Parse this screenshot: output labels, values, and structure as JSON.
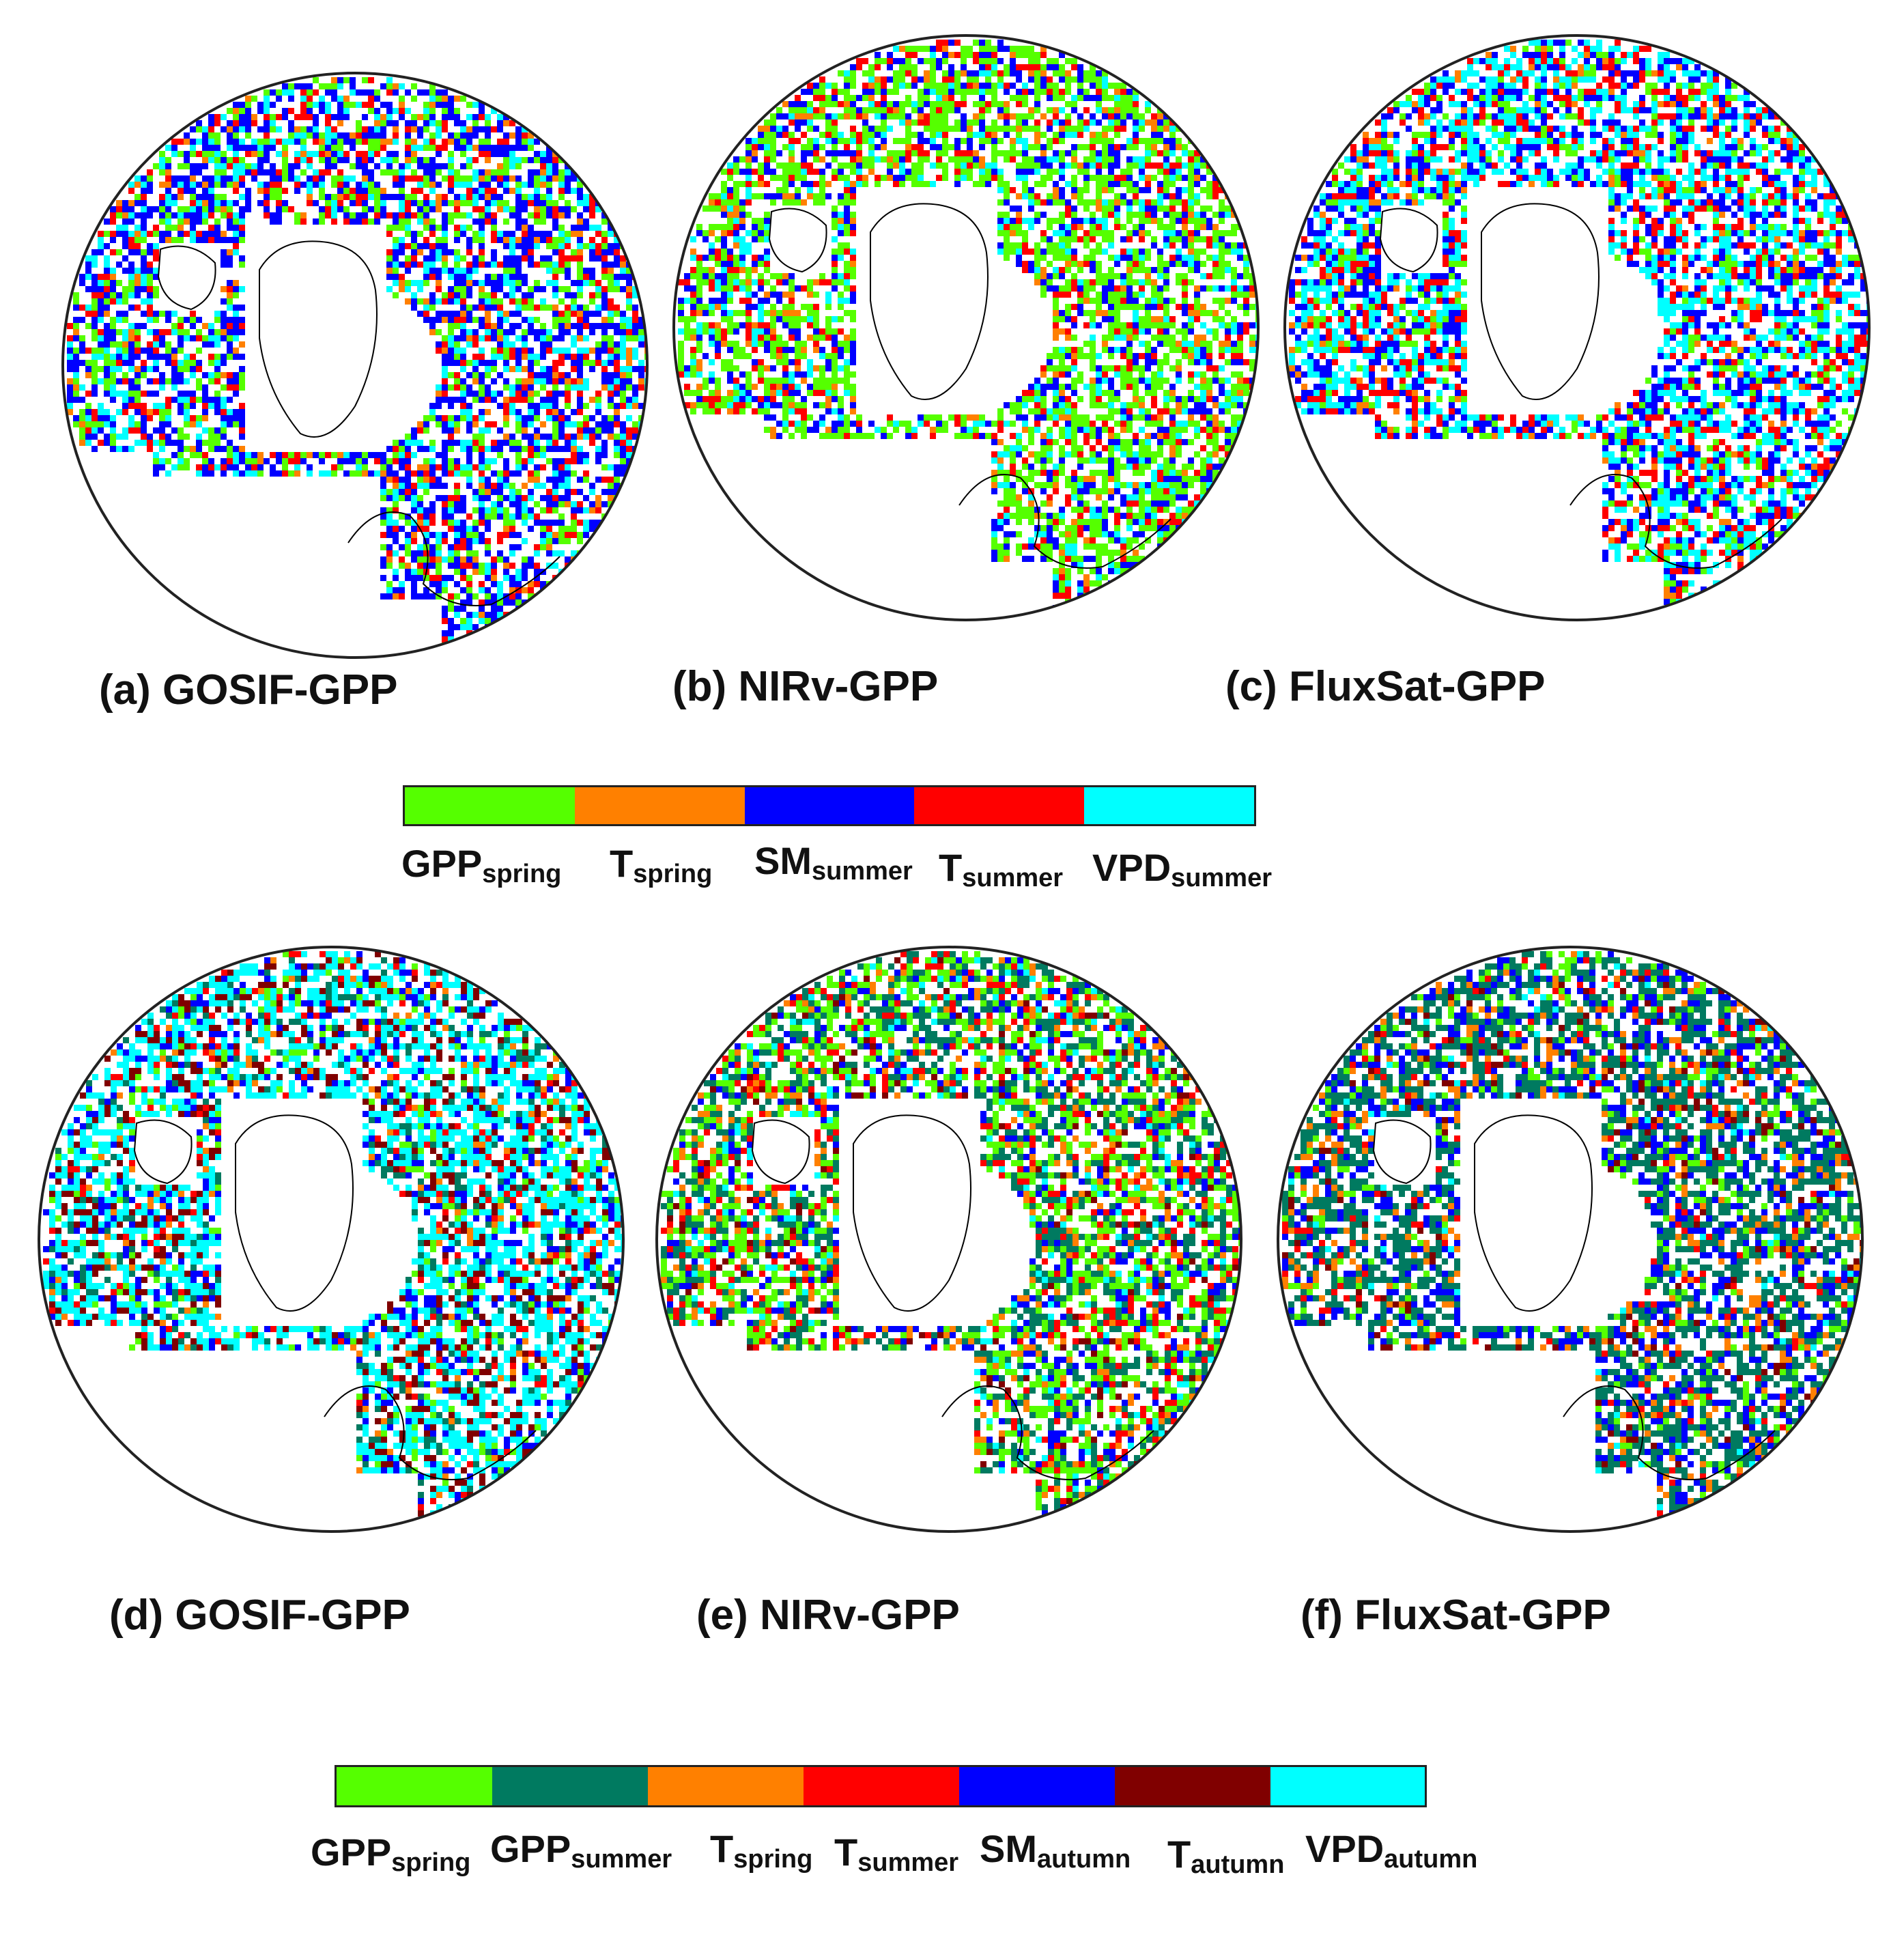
{
  "legend_top": {
    "items": [
      {
        "main": "GPP",
        "sub": "spring",
        "color": "#55ff00"
      },
      {
        "main": "T",
        "sub": "spring",
        "color": "#ff8000"
      },
      {
        "main": "SM",
        "sub": "summer",
        "color": "#0000ff"
      },
      {
        "main": "T",
        "sub": "summer",
        "color": "#ff0000"
      },
      {
        "main": "VPD",
        "sub": "summer",
        "color": "#00ffff"
      }
    ]
  },
  "legend_bottom": {
    "items": [
      {
        "main": "GPP",
        "sub": "spring",
        "color": "#55ff00"
      },
      {
        "main": "GPP",
        "sub": "summer",
        "color": "#007a60"
      },
      {
        "main": "T",
        "sub": "spring",
        "color": "#ff8000"
      },
      {
        "main": "T",
        "sub": "summer",
        "color": "#ff0000"
      },
      {
        "main": "SM",
        "sub": "autumn",
        "color": "#0000ff"
      },
      {
        "main": "T",
        "sub": "autumn",
        "color": "#800000"
      },
      {
        "main": "VPD",
        "sub": "autumn",
        "color": "#00ffff"
      }
    ]
  },
  "panels": [
    {
      "label": "(a) GOSIF-GPP",
      "scheme": "top",
      "dominant": [
        "#0000ff",
        "#ff0000",
        "#55ff00",
        "#00ffff",
        "#ff8000"
      ],
      "weights": [
        0.4,
        0.15,
        0.2,
        0.18,
        0.07
      ]
    },
    {
      "label": "(b) NIRv-GPP",
      "scheme": "top",
      "dominant": [
        "#55ff00",
        "#0000ff",
        "#ff0000",
        "#00ffff",
        "#ff8000"
      ],
      "weights": [
        0.45,
        0.22,
        0.13,
        0.12,
        0.08
      ]
    },
    {
      "label": "(c) FluxSat-GPP",
      "scheme": "top",
      "dominant": [
        "#00ffff",
        "#0000ff",
        "#ff0000",
        "#55ff00",
        "#ff8000"
      ],
      "weights": [
        0.35,
        0.28,
        0.2,
        0.12,
        0.05
      ]
    },
    {
      "label": "(d) GOSIF-GPP",
      "scheme": "bottom",
      "dominant": [
        "#00ffff",
        "#800000",
        "#0000ff",
        "#007a60",
        "#55ff00",
        "#ff0000",
        "#ff8000"
      ],
      "weights": [
        0.45,
        0.17,
        0.12,
        0.1,
        0.07,
        0.05,
        0.04
      ]
    },
    {
      "label": "(e) NIRv-GPP",
      "scheme": "bottom",
      "dominant": [
        "#55ff00",
        "#007a60",
        "#ff0000",
        "#0000ff",
        "#ff8000",
        "#00ffff",
        "#800000"
      ],
      "weights": [
        0.3,
        0.25,
        0.14,
        0.12,
        0.09,
        0.06,
        0.04
      ]
    },
    {
      "label": "(f) FluxSat-GPP",
      "scheme": "bottom",
      "dominant": [
        "#007a60",
        "#0000ff",
        "#ff8000",
        "#55ff00",
        "#ff0000",
        "#800000",
        "#00ffff"
      ],
      "weights": [
        0.45,
        0.22,
        0.1,
        0.09,
        0.06,
        0.05,
        0.03
      ]
    }
  ]
}
